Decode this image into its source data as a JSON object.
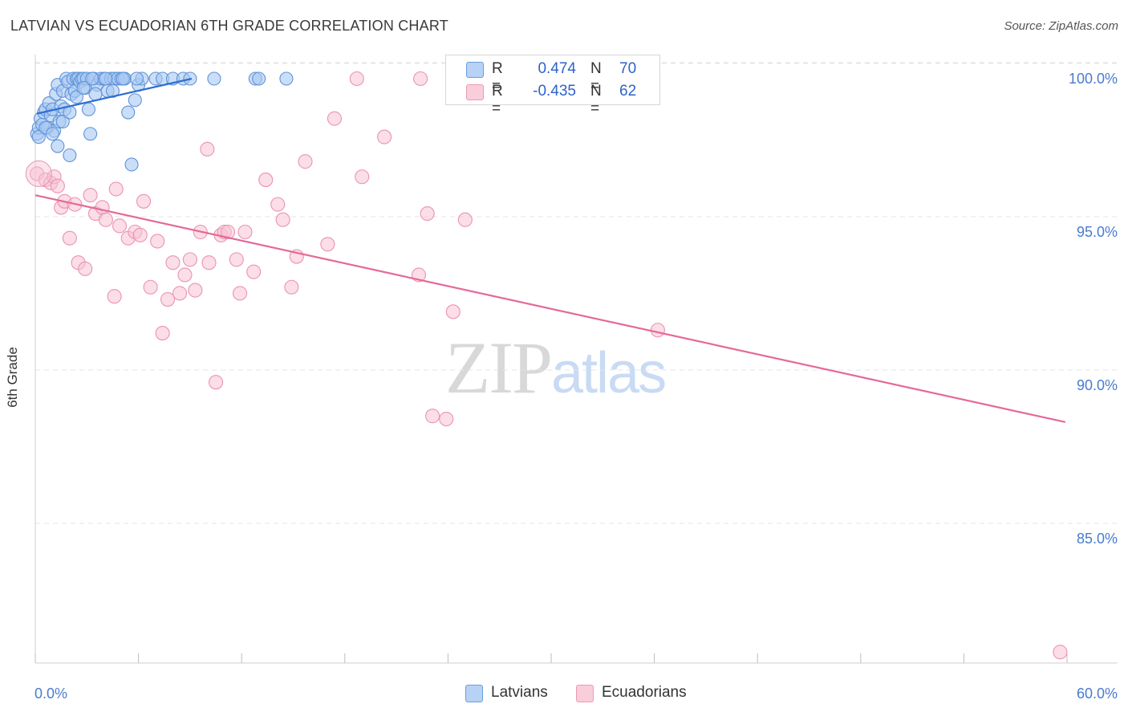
{
  "title": "LATVIAN VS ECUADORIAN 6TH GRADE CORRELATION CHART",
  "source": "Source: ZipAtlas.com",
  "watermark": {
    "zip": "ZIP",
    "atlas": "atlas"
  },
  "colors": {
    "latvian_fill": "#a9c8f2",
    "latvian_stroke": "#5f93d9",
    "latvian_line": "#2f6fd0",
    "ecuadorian_fill": "#f7c3d3",
    "ecuadorian_stroke": "#eb93b0",
    "ecuadorian_line": "#e4699a",
    "grid": "#e4e4e4",
    "axis_text": "#4a7bd0"
  },
  "legend": {
    "latvian": {
      "r_label": "R =",
      "r_value": "0.474",
      "n_label": "N =",
      "n_value": "70"
    },
    "ecuadorian": {
      "r_label": "R =",
      "r_value": "-0.435",
      "n_label": "N =",
      "n_value": "62"
    }
  },
  "chart_data": {
    "type": "scatter",
    "title": "LATVIAN VS ECUADORIAN 6TH GRADE CORRELATION CHART",
    "xlabel": "",
    "ylabel": "6th Grade",
    "xlim": [
      0,
      60
    ],
    "ylim": [
      80.9,
      100.6
    ],
    "x_tick_labels": [
      "0.0%",
      "60.0%"
    ],
    "y_ticks": [
      100,
      95,
      90,
      85
    ],
    "y_tick_labels": [
      "100.0%",
      "95.0%",
      "90.0%",
      "85.0%"
    ],
    "grid": true,
    "series": [
      {
        "name": "Latvians",
        "r": 0.474,
        "n": 70,
        "trend": {
          "x": [
            0.1,
            9.1
          ],
          "y": [
            98.86,
            100.0
          ]
        },
        "points": [
          [
            0.1,
            98.2
          ],
          [
            0.2,
            98.4
          ],
          [
            0.3,
            98.7
          ],
          [
            0.4,
            98.5
          ],
          [
            0.5,
            98.9
          ],
          [
            0.6,
            99.0
          ],
          [
            0.7,
            98.4
          ],
          [
            0.8,
            99.2
          ],
          [
            0.9,
            98.8
          ],
          [
            1.0,
            99.0
          ],
          [
            1.1,
            98.3
          ],
          [
            1.2,
            99.5
          ],
          [
            1.3,
            99.8
          ],
          [
            1.4,
            98.6
          ],
          [
            1.5,
            99.1
          ],
          [
            1.6,
            99.6
          ],
          [
            1.7,
            99.0
          ],
          [
            1.8,
            100.0
          ],
          [
            1.9,
            99.9
          ],
          [
            2.0,
            97.5
          ],
          [
            2.1,
            99.5
          ],
          [
            2.2,
            100.0
          ],
          [
            2.3,
            99.6
          ],
          [
            2.4,
            100.0
          ],
          [
            2.5,
            100.0
          ],
          [
            2.6,
            99.9
          ],
          [
            2.7,
            100.0
          ],
          [
            2.8,
            100.0
          ],
          [
            2.9,
            99.7
          ],
          [
            3.0,
            100.0
          ],
          [
            3.2,
            98.2
          ],
          [
            3.4,
            100.0
          ],
          [
            3.6,
            99.8
          ],
          [
            3.8,
            100.0
          ],
          [
            4.0,
            100.0
          ],
          [
            4.2,
            99.6
          ],
          [
            4.4,
            100.0
          ],
          [
            4.6,
            100.0
          ],
          [
            4.8,
            100.0
          ],
          [
            5.0,
            100.0
          ],
          [
            5.2,
            100.0
          ],
          [
            5.4,
            98.9
          ],
          [
            5.6,
            97.2
          ],
          [
            5.8,
            99.3
          ],
          [
            6.0,
            99.8
          ],
          [
            6.2,
            100.0
          ],
          [
            7.0,
            100.0
          ],
          [
            7.4,
            100.0
          ],
          [
            8.0,
            100.0
          ],
          [
            8.6,
            100.0
          ],
          [
            9.0,
            100.0
          ],
          [
            10.4,
            100.0
          ],
          [
            12.8,
            100.0
          ],
          [
            13.0,
            100.0
          ],
          [
            14.6,
            100.0
          ],
          [
            0.2,
            98.1
          ],
          [
            0.6,
            98.4
          ],
          [
            1.0,
            98.2
          ],
          [
            1.3,
            97.8
          ],
          [
            1.6,
            98.6
          ],
          [
            2.0,
            98.9
          ],
          [
            2.4,
            99.4
          ],
          [
            2.8,
            99.7
          ],
          [
            3.1,
            99.0
          ],
          [
            3.5,
            99.5
          ],
          [
            4.5,
            99.6
          ],
          [
            5.1,
            100.0
          ],
          [
            5.9,
            100.0
          ],
          [
            4.1,
            100.0
          ],
          [
            3.3,
            100.0
          ]
        ]
      },
      {
        "name": "Ecuadorians",
        "r": -0.435,
        "n": 62,
        "trend": {
          "x": [
            0.0,
            59.9
          ],
          "y": [
            96.2,
            88.8
          ]
        },
        "points": [
          [
            0.1,
            96.9
          ],
          [
            0.6,
            96.7
          ],
          [
            0.9,
            96.6
          ],
          [
            1.1,
            96.8
          ],
          [
            1.3,
            96.5
          ],
          [
            1.5,
            95.8
          ],
          [
            1.7,
            96.0
          ],
          [
            2.0,
            94.8
          ],
          [
            2.3,
            95.9
          ],
          [
            2.5,
            94.0
          ],
          [
            2.9,
            93.8
          ],
          [
            3.2,
            96.2
          ],
          [
            3.5,
            95.6
          ],
          [
            3.9,
            95.8
          ],
          [
            4.1,
            95.4
          ],
          [
            4.7,
            96.4
          ],
          [
            4.9,
            95.2
          ],
          [
            4.6,
            92.9
          ],
          [
            5.4,
            94.8
          ],
          [
            5.8,
            95.0
          ],
          [
            6.1,
            94.9
          ],
          [
            6.3,
            96.0
          ],
          [
            6.7,
            93.2
          ],
          [
            7.1,
            94.7
          ],
          [
            7.4,
            91.7
          ],
          [
            7.7,
            92.8
          ],
          [
            8.0,
            94.0
          ],
          [
            8.4,
            93.0
          ],
          [
            8.7,
            93.6
          ],
          [
            9.0,
            94.1
          ],
          [
            9.3,
            93.1
          ],
          [
            9.6,
            95.0
          ],
          [
            10.0,
            97.7
          ],
          [
            10.1,
            94.0
          ],
          [
            10.5,
            90.1
          ],
          [
            10.8,
            94.9
          ],
          [
            11.0,
            95.0
          ],
          [
            11.7,
            94.1
          ],
          [
            11.9,
            93.0
          ],
          [
            12.2,
            95.0
          ],
          [
            12.7,
            93.7
          ],
          [
            13.4,
            96.7
          ],
          [
            14.1,
            95.9
          ],
          [
            14.4,
            95.4
          ],
          [
            14.9,
            93.2
          ],
          [
            15.2,
            94.2
          ],
          [
            15.7,
            97.3
          ],
          [
            17.0,
            94.6
          ],
          [
            17.4,
            98.7
          ],
          [
            18.7,
            100.0
          ],
          [
            19.0,
            96.8
          ],
          [
            20.3,
            98.1
          ],
          [
            22.3,
            93.6
          ],
          [
            22.4,
            100.0
          ],
          [
            22.8,
            95.6
          ],
          [
            23.1,
            89.0
          ],
          [
            23.9,
            88.9
          ],
          [
            24.3,
            92.4
          ],
          [
            25.0,
            95.4
          ],
          [
            36.2,
            91.8
          ],
          [
            59.6,
            81.3
          ],
          [
            11.2,
            95.0
          ]
        ]
      }
    ]
  },
  "bottom_legend": {
    "latvians": "Latvians",
    "ecuadorians": "Ecuadorians"
  }
}
